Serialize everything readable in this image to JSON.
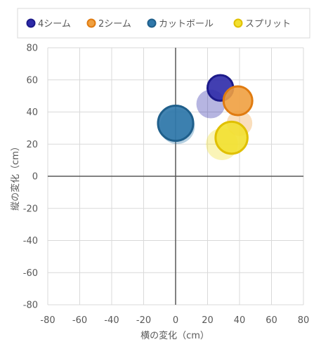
{
  "chart_data": {
    "type": "scatter",
    "title": "",
    "xlabel": "横の変化（cm）",
    "ylabel": "縦の変化（cm）",
    "xlim": [
      -80,
      80
    ],
    "ylim": [
      -80,
      80
    ],
    "x_ticks": [
      "-80",
      "-60",
      "-40",
      "-20",
      "0",
      "20",
      "40",
      "60",
      "80"
    ],
    "y_ticks": [
      "80",
      "60",
      "40",
      "20",
      "0",
      "-20",
      "-40",
      "-60",
      "-80"
    ],
    "grid": true,
    "legend_position": "top",
    "series": [
      {
        "name": "4シーム",
        "color": "#1c1a8a",
        "fill": "#2d2aa8",
        "points": [
          {
            "x": 28,
            "y": 55,
            "size": 8,
            "opacity": 0.92
          },
          {
            "x": 22,
            "y": 45,
            "size": 9,
            "opacity": 0.35
          }
        ]
      },
      {
        "name": "2シーム",
        "color": "#e07b10",
        "fill": "#f0a040",
        "points": [
          {
            "x": 39,
            "y": 47,
            "size": 9,
            "opacity": 0.92
          },
          {
            "x": 40,
            "y": 33,
            "size": 8,
            "opacity": 0.35
          }
        ]
      },
      {
        "name": "カットボール",
        "color": "#1f5f8b",
        "fill": "#2f77aa",
        "points": [
          {
            "x": 0,
            "y": 33,
            "size": 11,
            "opacity": 0.95
          },
          {
            "x": 1,
            "y": 31,
            "size": 11,
            "opacity": 0.35
          }
        ]
      },
      {
        "name": "スプリット",
        "color": "#e0c000",
        "fill": "#f2e030",
        "points": [
          {
            "x": 35,
            "y": 24,
            "size": 10,
            "opacity": 0.92
          },
          {
            "x": 29,
            "y": 20,
            "size": 10,
            "opacity": 0.35
          }
        ]
      }
    ]
  }
}
